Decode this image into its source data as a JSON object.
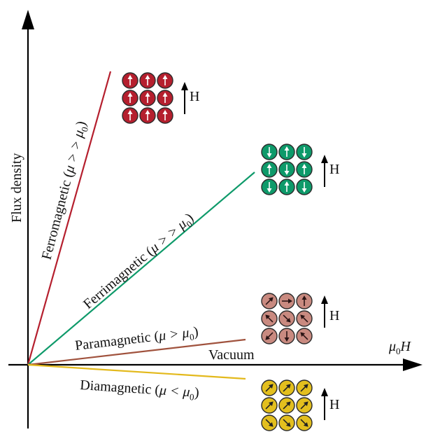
{
  "axes": {
    "y_label": "Flux density",
    "x_label_symbol": "μ",
    "x_label_sub": "0",
    "x_label_var": "H"
  },
  "materials": [
    {
      "key": "ferro",
      "name": "Ferromagnetic",
      "relation": "μ > > μ",
      "relation_sub": "0",
      "line_color": "#b51f2e",
      "fill_color": "#b51f2e",
      "arrows": [
        "up",
        "up",
        "up",
        "up",
        "up",
        "up",
        "up",
        "up",
        "up"
      ],
      "arrow_color": "#ffffff",
      "field_label": "H"
    },
    {
      "key": "ferri",
      "name": "Ferrimagnetic",
      "relation": "μ > > μ",
      "relation_sub": "0",
      "line_color": "#0e9a6a",
      "fill_color": "#0e9a6a",
      "arrows": [
        "down",
        "up",
        "down",
        "up",
        "down",
        "up",
        "down",
        "up",
        "down"
      ],
      "arrow_color": "#ffffff",
      "field_label": "H"
    },
    {
      "key": "para",
      "name": "Paramagnetic",
      "relation": "μ > μ",
      "relation_sub": "0",
      "line_color": "#a0523d",
      "fill_color": "#c98a80",
      "arrows": [
        "ne",
        "e",
        "up",
        "nw",
        "se",
        "nw",
        "sw",
        "down",
        "nw"
      ],
      "arrow_color": "#2a1414",
      "field_label": "H"
    },
    {
      "key": "dia",
      "name": "Diamagnetic",
      "relation": "μ < μ",
      "relation_sub": "0",
      "line_color": "#e3b91c",
      "fill_color": "#e3bf1e",
      "arrows": [
        "ne",
        "ne",
        "ne",
        "ne",
        "ne",
        "ne",
        "se",
        "se",
        "se"
      ],
      "arrow_color": "#222222",
      "field_label": "H"
    }
  ],
  "vacuum_label": "Vacuum"
}
